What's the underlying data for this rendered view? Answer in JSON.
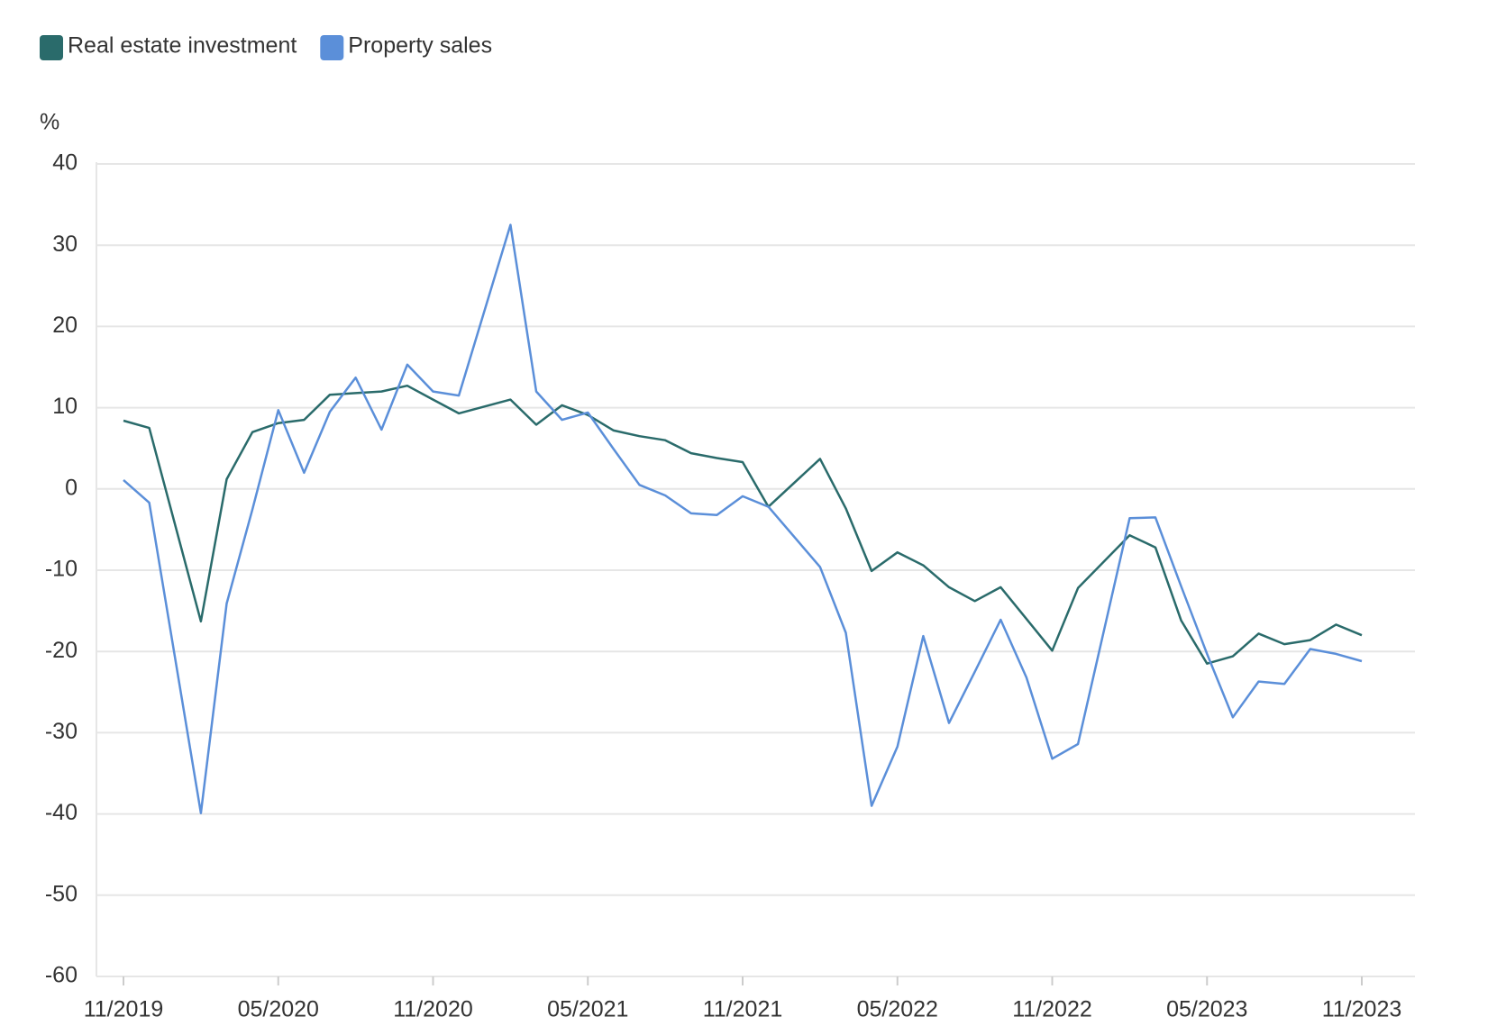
{
  "chart_data": {
    "type": "line",
    "y_label": "%",
    "x": [
      "11/2019",
      "12/2019",
      "02/2020",
      "03/2020",
      "04/2020",
      "05/2020",
      "06/2020",
      "07/2020",
      "08/2020",
      "09/2020",
      "10/2020",
      "11/2020",
      "12/2020",
      "02/2021",
      "03/2021",
      "04/2021",
      "05/2021",
      "06/2021",
      "07/2021",
      "08/2021",
      "09/2021",
      "10/2021",
      "11/2021",
      "12/2021",
      "02/2022",
      "03/2022",
      "04/2022",
      "05/2022",
      "06/2022",
      "07/2022",
      "08/2022",
      "09/2022",
      "10/2022",
      "11/2022",
      "12/2022",
      "02/2023",
      "03/2023",
      "04/2023",
      "05/2023",
      "06/2023",
      "07/2023",
      "08/2023",
      "09/2023",
      "10/2023",
      "11/2023"
    ],
    "series": [
      {
        "name": "Real estate investment",
        "color": "#2a6b6b",
        "values": [
          8.4,
          7.5,
          -16.3,
          1.2,
          7.0,
          8.1,
          8.5,
          11.6,
          11.8,
          12.0,
          12.7,
          11.0,
          9.3,
          11.0,
          7.9,
          10.3,
          9.1,
          7.2,
          6.5,
          6.0,
          4.4,
          3.8,
          3.3,
          -2.2,
          3.7,
          -2.4,
          -10.1,
          -7.8,
          -9.4,
          -12.1,
          -13.8,
          -12.1,
          -16.0,
          -19.9,
          -12.2,
          -5.7,
          -7.2,
          -16.2,
          -21.5,
          -20.6,
          -17.8,
          -19.1,
          -18.6,
          -16.7,
          -18.0
        ]
      },
      {
        "name": "Property sales",
        "color": "#5b8fd9",
        "values": [
          1.1,
          -1.7,
          -39.9,
          -14.1,
          -2.5,
          9.7,
          2.0,
          9.5,
          13.7,
          7.3,
          15.3,
          12.0,
          11.5,
          32.5,
          12.0,
          8.5,
          9.4,
          4.9,
          0.5,
          -0.8,
          -3.0,
          -3.2,
          -0.9,
          -2.2,
          -9.6,
          -17.7,
          -39.0,
          -31.7,
          -18.1,
          -28.8,
          -22.5,
          -16.1,
          -23.2,
          -33.2,
          -31.4,
          -3.6,
          -3.5,
          -12.0,
          -20.3,
          -28.1,
          -23.7,
          -24.0,
          -19.7,
          -20.3,
          -21.2
        ]
      }
    ],
    "ylim": [
      -60,
      40
    ],
    "yticks": [
      -60,
      -50,
      -40,
      -30,
      -20,
      -10,
      0,
      10,
      20,
      30,
      40
    ],
    "xticks": [
      "11/2019",
      "05/2020",
      "11/2020",
      "05/2021",
      "11/2021",
      "05/2022",
      "11/2022",
      "05/2023",
      "11/2023"
    ],
    "grid": true
  }
}
